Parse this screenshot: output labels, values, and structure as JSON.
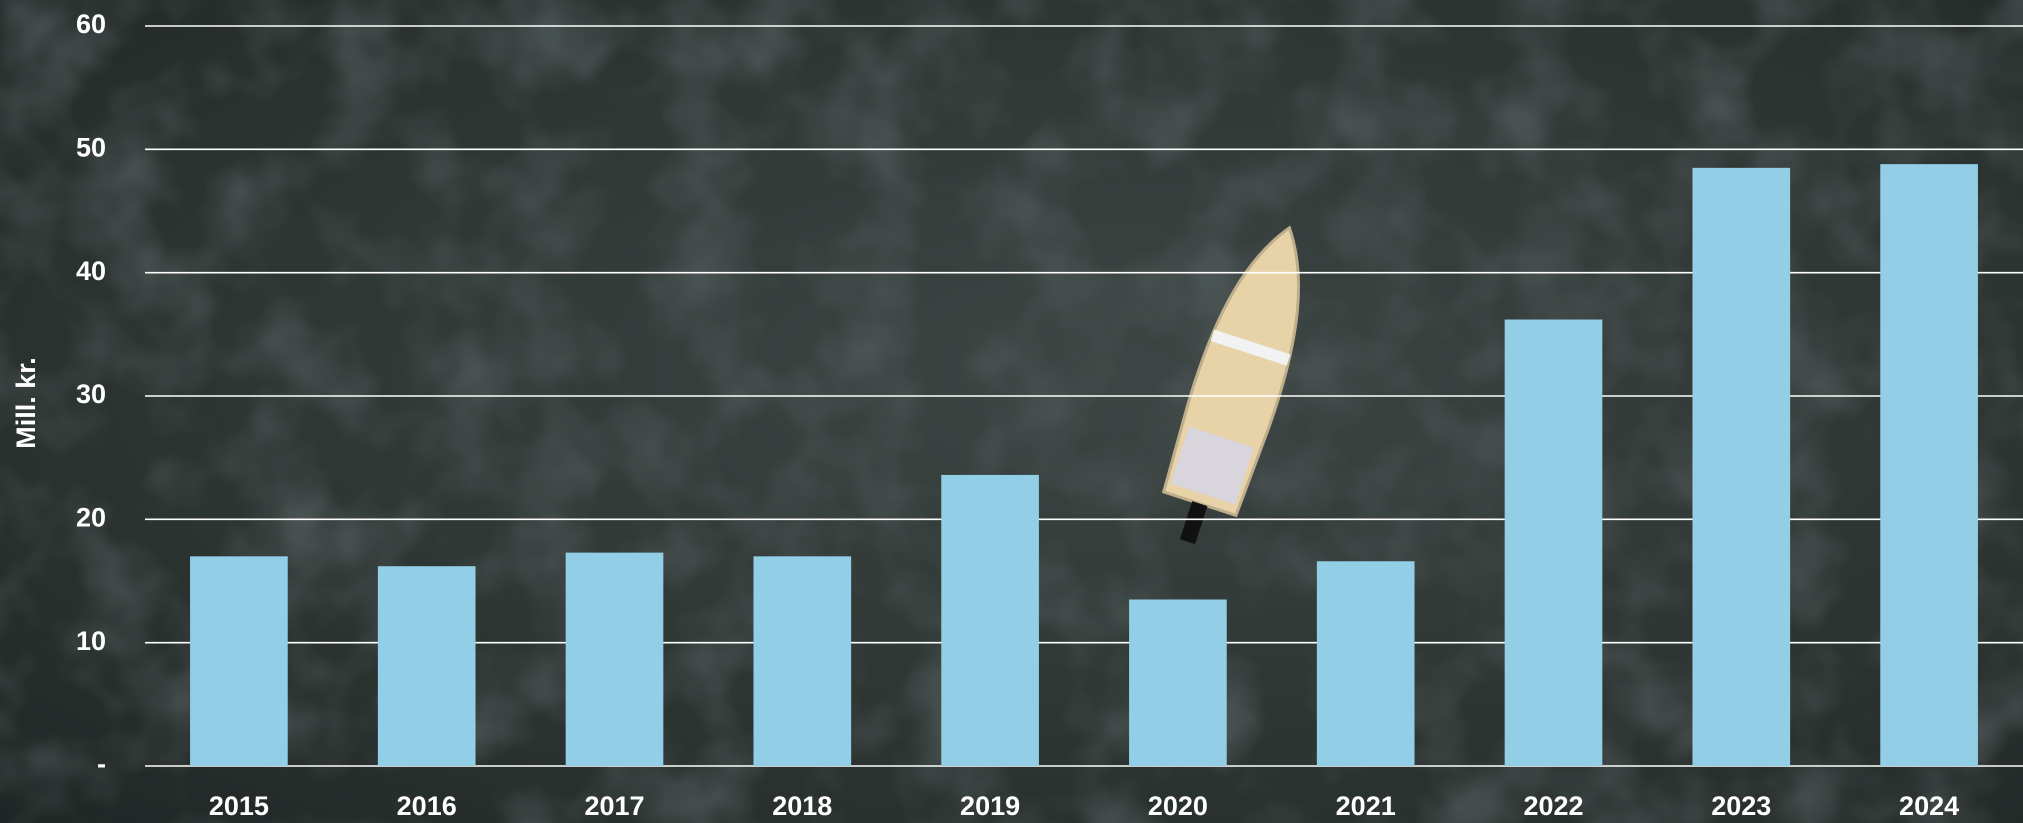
{
  "chart_data": {
    "type": "bar",
    "y_label": "Mill. kr.",
    "categories": [
      "2015",
      "2016",
      "2017",
      "2018",
      "2019",
      "2020",
      "2021",
      "2022",
      "2023",
      "2024"
    ],
    "values": [
      17.0,
      16.2,
      17.3,
      17.0,
      23.6,
      13.5,
      16.6,
      36.2,
      48.5,
      48.8
    ],
    "color": "#92cfe6",
    "ylim": [
      0,
      60
    ],
    "yticks": [
      {
        "value": 0,
        "label": "-"
      },
      10,
      20,
      30,
      40,
      50,
      60
    ],
    "grid": true
  }
}
